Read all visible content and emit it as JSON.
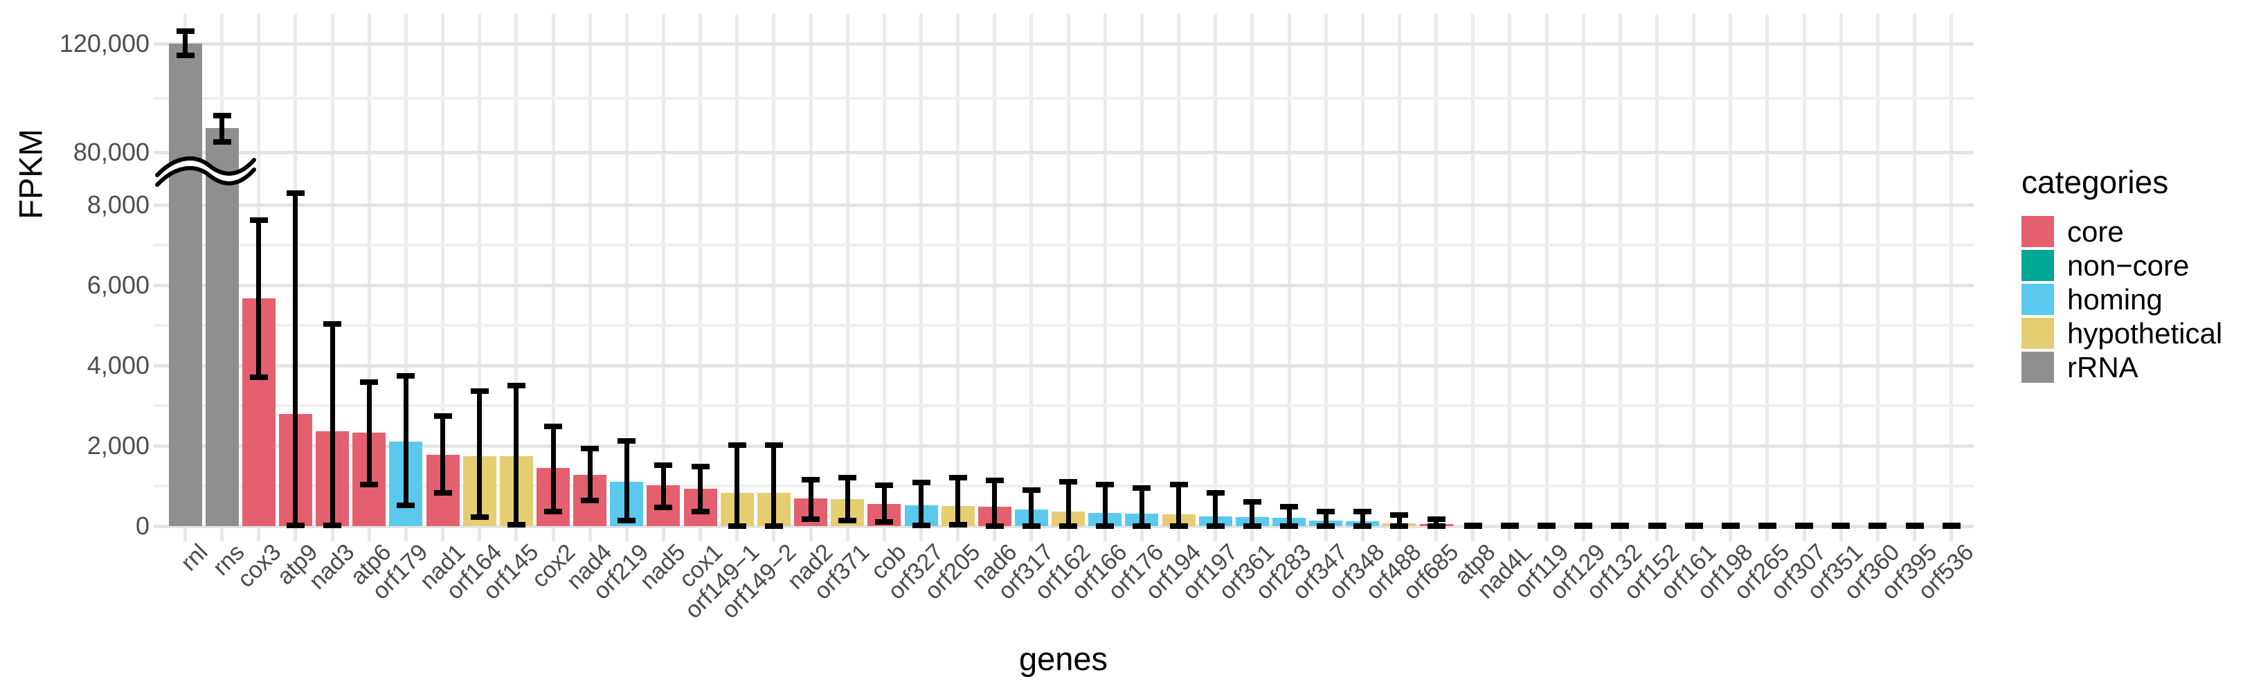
{
  "figure": {
    "ylabel": "FPKM",
    "xlabel": "genes"
  },
  "legend": {
    "title": "categories",
    "items": [
      {
        "label": "core",
        "category_key": "core"
      },
      {
        "label": "non−core",
        "category_key": "non_core"
      },
      {
        "label": "homing",
        "category_key": "homing"
      },
      {
        "label": "hypothetical",
        "category_key": "hypothetical"
      },
      {
        "label": "rRNA",
        "category_key": "rRNA"
      }
    ]
  },
  "colors": {
    "core": "#E4606F",
    "non_core": "#00A794",
    "homing": "#5BC9ED",
    "hypothetical": "#E5CD72",
    "rRNA": "#8F8F8F"
  },
  "chart_data": {
    "type": "bar",
    "title": "",
    "xlabel": "genes",
    "ylabel": "FPKM",
    "axis_break": {
      "lower_max": 8000,
      "upper_min": 80000
    },
    "y_ticks": [
      {
        "label": "0",
        "value": 0
      },
      {
        "label": "2,000",
        "value": 2000
      },
      {
        "label": "4,000",
        "value": 4000
      },
      {
        "label": "6,000",
        "value": 6000
      },
      {
        "label": "8,000",
        "value": 8000
      },
      {
        "label": "80,000",
        "value": 80000
      },
      {
        "label": "120,000",
        "value": 120000
      }
    ],
    "y_minor_gridlines": [
      1000,
      3000,
      5000,
      7000,
      100000
    ],
    "legend_position": "right",
    "grid": true,
    "genes": [
      {
        "name": "rnl",
        "category": "rRNA",
        "fpkm": 120000,
        "err": [
          115700,
          124600
        ]
      },
      {
        "name": "rns",
        "category": "rRNA",
        "fpkm": 88900,
        "err": [
          83800,
          93600
        ]
      },
      {
        "name": "cox3",
        "category": "core",
        "fpkm": 5670,
        "err": [
          3710,
          7620
        ]
      },
      {
        "name": "atp9",
        "category": "core",
        "fpkm": 2790,
        "err": [
          20,
          8290
        ]
      },
      {
        "name": "nad3",
        "category": "core",
        "fpkm": 2360,
        "err": [
          20,
          5030
        ]
      },
      {
        "name": "atp6",
        "category": "core",
        "fpkm": 2330,
        "err": [
          1030,
          3590
        ]
      },
      {
        "name": "orf179",
        "category": "homing",
        "fpkm": 2110,
        "err": [
          520,
          3740
        ]
      },
      {
        "name": "nad1",
        "category": "core",
        "fpkm": 1770,
        "err": [
          820,
          2750
        ]
      },
      {
        "name": "orf164",
        "category": "hypothetical",
        "fpkm": 1740,
        "err": [
          230,
          3360
        ]
      },
      {
        "name": "orf145",
        "category": "hypothetical",
        "fpkm": 1750,
        "err": [
          30,
          3500
        ]
      },
      {
        "name": "cox2",
        "category": "core",
        "fpkm": 1450,
        "err": [
          370,
          2490
        ]
      },
      {
        "name": "nad4",
        "category": "core",
        "fpkm": 1280,
        "err": [
          630,
          1930
        ]
      },
      {
        "name": "orf219",
        "category": "homing",
        "fpkm": 1110,
        "err": [
          130,
          2120
        ]
      },
      {
        "name": "nad5",
        "category": "core",
        "fpkm": 1020,
        "err": [
          470,
          1510
        ]
      },
      {
        "name": "cox1",
        "category": "core",
        "fpkm": 930,
        "err": [
          370,
          1480
        ]
      },
      {
        "name": "orf149−1",
        "category": "hypothetical",
        "fpkm": 820,
        "err": [
          0,
          2020
        ]
      },
      {
        "name": "orf149−2",
        "category": "hypothetical",
        "fpkm": 820,
        "err": [
          0,
          2020
        ]
      },
      {
        "name": "nad2",
        "category": "core",
        "fpkm": 690,
        "err": [
          180,
          1150
        ]
      },
      {
        "name": "orf371",
        "category": "hypothetical",
        "fpkm": 670,
        "err": [
          130,
          1200
        ]
      },
      {
        "name": "cob",
        "category": "core",
        "fpkm": 550,
        "err": [
          100,
          1010
        ]
      },
      {
        "name": "orf327",
        "category": "homing",
        "fpkm": 520,
        "err": [
          10,
          1090
        ]
      },
      {
        "name": "orf205",
        "category": "hypothetical",
        "fpkm": 500,
        "err": [
          30,
          1210
        ]
      },
      {
        "name": "nad6",
        "category": "core",
        "fpkm": 490,
        "err": [
          0,
          1140
        ]
      },
      {
        "name": "orf317",
        "category": "homing",
        "fpkm": 410,
        "err": [
          0,
          890
        ]
      },
      {
        "name": "orf162",
        "category": "hypothetical",
        "fpkm": 360,
        "err": [
          0,
          1100
        ]
      },
      {
        "name": "orf166",
        "category": "homing",
        "fpkm": 330,
        "err": [
          0,
          1030
        ]
      },
      {
        "name": "orf176",
        "category": "homing",
        "fpkm": 310,
        "err": [
          0,
          950
        ]
      },
      {
        "name": "orf194",
        "category": "hypothetical",
        "fpkm": 290,
        "err": [
          0,
          1030
        ]
      },
      {
        "name": "orf197",
        "category": "homing",
        "fpkm": 240,
        "err": [
          0,
          820
        ]
      },
      {
        "name": "orf361",
        "category": "homing",
        "fpkm": 220,
        "err": [
          0,
          600
        ]
      },
      {
        "name": "orf283",
        "category": "homing",
        "fpkm": 200,
        "err": [
          0,
          490
        ]
      },
      {
        "name": "orf347",
        "category": "homing",
        "fpkm": 140,
        "err": [
          0,
          370
        ]
      },
      {
        "name": "orf348",
        "category": "homing",
        "fpkm": 120,
        "err": [
          0,
          360
        ]
      },
      {
        "name": "orf488",
        "category": "hypothetical",
        "fpkm": 70,
        "err": [
          0,
          270
        ]
      },
      {
        "name": "orf685",
        "category": "core",
        "fpkm": 50,
        "err": [
          0,
          170
        ]
      },
      {
        "name": "atp8",
        "category": null,
        "fpkm": 0,
        "err": [
          0,
          0
        ]
      },
      {
        "name": "nad4L",
        "category": null,
        "fpkm": 0,
        "err": [
          0,
          0
        ]
      },
      {
        "name": "orf119",
        "category": null,
        "fpkm": 0,
        "err": [
          0,
          0
        ]
      },
      {
        "name": "orf129",
        "category": null,
        "fpkm": 0,
        "err": [
          0,
          0
        ]
      },
      {
        "name": "orf132",
        "category": null,
        "fpkm": 0,
        "err": [
          0,
          0
        ]
      },
      {
        "name": "orf152",
        "category": null,
        "fpkm": 0,
        "err": [
          0,
          0
        ]
      },
      {
        "name": "orf161",
        "category": null,
        "fpkm": 0,
        "err": [
          0,
          0
        ]
      },
      {
        "name": "orf198",
        "category": null,
        "fpkm": 0,
        "err": [
          0,
          0
        ]
      },
      {
        "name": "orf265",
        "category": null,
        "fpkm": 0,
        "err": [
          0,
          0
        ]
      },
      {
        "name": "orf307",
        "category": null,
        "fpkm": 0,
        "err": [
          0,
          0
        ]
      },
      {
        "name": "orf351",
        "category": null,
        "fpkm": 0,
        "err": [
          0,
          0
        ]
      },
      {
        "name": "orf360",
        "category": null,
        "fpkm": 0,
        "err": [
          0,
          0
        ]
      },
      {
        "name": "orf395",
        "category": null,
        "fpkm": 0,
        "err": [
          0,
          0
        ]
      },
      {
        "name": "orf536",
        "category": null,
        "fpkm": 0,
        "err": [
          0,
          0
        ]
      }
    ]
  }
}
